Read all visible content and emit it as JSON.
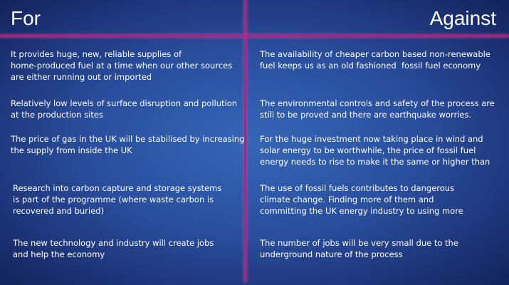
{
  "for": {
    "heading": "For",
    "items": [
      [
        "It provides huge, new, reliable supplies of",
        "home-produced fuel at a time when our other sources",
        "are either running out or imported"
      ],
      [
        "Relatively low levels of surface disruption and pollution",
        "at the production sites"
      ],
      [
        "The price of gas in the UK will be stabilised by increasing",
        "the supply from inside the UK"
      ],
      [
        "Research into carbon capture and storage systems",
        "is part of the programme (where waste carbon is",
        "recovered and buried)"
      ],
      [
        "The new technology and industry will create jobs",
        "and help the economy"
      ]
    ]
  },
  "against": {
    "heading": "Against",
    "items": [
      [
        "The availability of cheaper carbon based non-renewable",
        "fuel keeps us as an old fashioned  fossil fuel economy"
      ],
      [
        "The environmental controls and safety of the process are",
        "still to be proved and there are earthquake worries."
      ],
      [
        "For the huge investment now taking place in wind and",
        "solar energy to be worthwhile, the price of fossil fuel",
        "energy needs to rise to make it the same or higher than"
      ],
      [
        "The use of fossil fuels contributes to dangerous",
        "climate change. Finding more of them and",
        "committing the UK energy industry to using more"
      ],
      [
        "The number of jobs will be very small due to the",
        "underground nature of the process"
      ]
    ]
  }
}
